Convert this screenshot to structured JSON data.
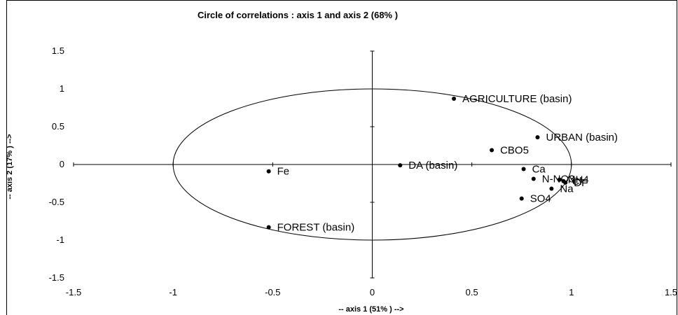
{
  "chart_data": {
    "type": "scatter",
    "title": "Circle of correlations : axis 1 and axis 2 (68% )",
    "xlabel": "-- axis 1 (51% ) -->",
    "ylabel": "-- axis 2 (17% ) -->",
    "xlim": [
      -1.5,
      1.5
    ],
    "ylim": [
      -1.5,
      1.5
    ],
    "x_ticks": [
      "-1.5",
      "-1",
      "-0.5",
      "0",
      "0.5",
      "1",
      "1.5"
    ],
    "y_ticks": [
      "1.5",
      "1",
      "0.5",
      "0",
      "-0.5",
      "-1",
      "-1.5"
    ],
    "grid": false,
    "legend": "none",
    "unit_circle": true,
    "points": [
      {
        "label": "AGRICULTURE (basin)",
        "x": 0.41,
        "y": 0.87
      },
      {
        "label": "URBAN (basin)",
        "x": 0.83,
        "y": 0.36
      },
      {
        "label": "CBO5",
        "x": 0.6,
        "y": 0.19
      },
      {
        "label": "DA (basin)",
        "x": 0.14,
        "y": -0.01
      },
      {
        "label": "Ca",
        "x": 0.76,
        "y": -0.06
      },
      {
        "label": "N-NO3",
        "x": 0.81,
        "y": -0.19
      },
      {
        "label": "NH4",
        "x": 0.94,
        "y": -0.2
      },
      {
        "label": "Cl",
        "x": 0.96,
        "y": -0.22
      },
      {
        "label": "DF",
        "x": 0.97,
        "y": -0.24
      },
      {
        "label": "Na",
        "x": 0.9,
        "y": -0.32
      },
      {
        "label": "SO4",
        "x": 0.75,
        "y": -0.45
      },
      {
        "label": "Fe",
        "x": -0.52,
        "y": -0.09
      },
      {
        "label": "FOREST (basin)",
        "x": -0.52,
        "y": -0.83
      }
    ]
  }
}
